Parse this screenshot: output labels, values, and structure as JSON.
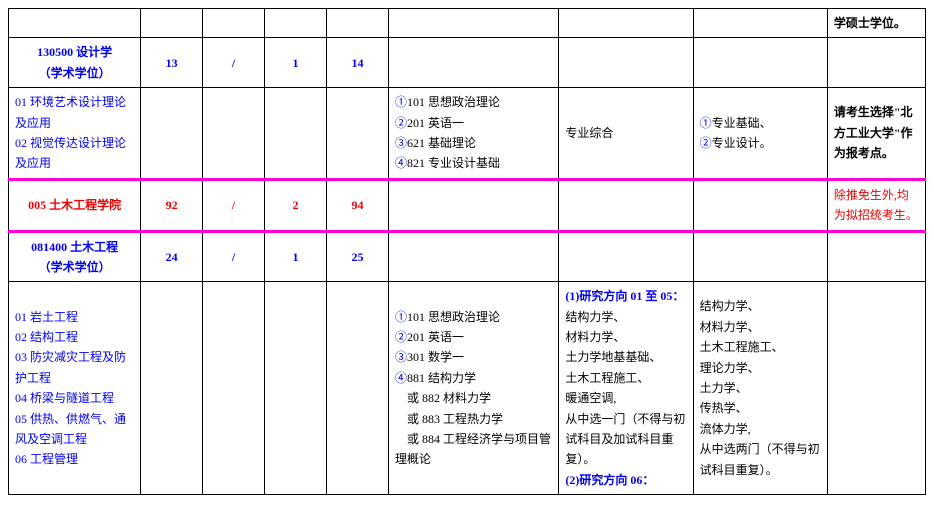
{
  "rows": {
    "r0": {
      "c8": "学硕士学位。"
    },
    "r1": {
      "c0_1": "130500 设计学",
      "c0_2": "（学术学位）",
      "c1": "13",
      "c2": "/",
      "c3": "1",
      "c4": "14"
    },
    "r2": {
      "c0_1": "01 环境艺术设计理论及应用",
      "c0_2": "02 视觉传达设计理论及应用",
      "c5_1": "①101 思想政治理论",
      "c5_2": "②201 英语一",
      "c5_3": "③621 基础理论",
      "c5_4": "④821 专业设计基础",
      "c6": "专业综合",
      "c7_1": "①专业基础、",
      "c7_2": "②专业设计。",
      "c8": "请考生选择\"北方工业大学\"作为报考点。"
    },
    "r3": {
      "c0": "005 土木工程学院",
      "c1": "92",
      "c2": "/",
      "c3": "2",
      "c4": "94",
      "c8": "除推免生外,均为拟招统考生。"
    },
    "r4": {
      "c0_1": "081400 土木工程",
      "c0_2": "（学术学位）",
      "c1": "24",
      "c2": "/",
      "c3": "1",
      "c4": "25"
    },
    "r5": {
      "c0_1": "01 岩土工程",
      "c0_2": "02 结构工程",
      "c0_3": "03 防灾减灾工程及防护工程",
      "c0_4": "04 桥梁与隧道工程",
      "c0_5": "05 供热、供燃气、通风及空调工程",
      "c0_6": "06 工程管理",
      "c5_1": "①101 思想政治理论",
      "c5_2": "②201 英语一",
      "c5_3": "③301 数学一",
      "c5_4": "④881 结构力学",
      "c5_5": "　或 882 材料力学",
      "c5_6": "　或 883 工程热力学",
      "c5_7": "　或 884 工程经济学与项目管理概论",
      "c6_h1": "(1)研究方向 01 至 05：",
      "c6_1": "结构力学、",
      "c6_2": "材料力学、",
      "c6_3": "土力学地基基础、",
      "c6_4": "土木工程施工、",
      "c6_5": "暖通空调,",
      "c6_6": "从中选一门（不得与初试科目及加试科目重复）。",
      "c6_h2": "(2)研究方向 06：",
      "c7_1": "结构力学、",
      "c7_2": "材料力学、",
      "c7_3": "土木工程施工、",
      "c7_4": "理论力学、",
      "c7_5": "土力学、",
      "c7_6": "传热学、",
      "c7_7": "流体力学,",
      "c7_8": "从中选两门（不得与初试科目重复）。"
    }
  }
}
